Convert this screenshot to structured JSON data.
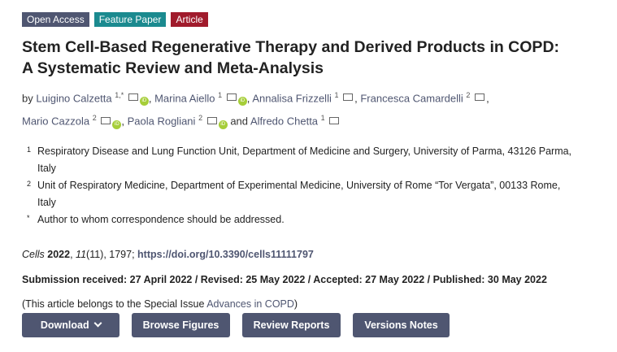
{
  "badges": [
    {
      "label": "Open Access",
      "color": "#4f5671"
    },
    {
      "label": "Feature Paper",
      "color": "#1b8a8f"
    },
    {
      "label": "Article",
      "color": "#a01b2c"
    }
  ],
  "title_line1": "Stem Cell-Based Regenerative Therapy and Derived Products in COPD:",
  "title_line2": "A Systematic Review and Meta-Analysis",
  "by": "by",
  "authors": [
    {
      "name": "Luigino Calzetta",
      "sup": "1,*"
    },
    {
      "name": "Marina Aiello",
      "sup": "1"
    },
    {
      "name": "Annalisa Frizzelli",
      "sup": "1"
    },
    {
      "name": "Francesca Camardelli",
      "sup": "2"
    },
    {
      "name": "Mario Cazzola",
      "sup": "2"
    },
    {
      "name": "Paola Rogliani",
      "sup": "2"
    },
    {
      "name": "Alfredo Chetta",
      "sup": "1"
    }
  ],
  "and": "and",
  "icons": {
    "mail": "envelope-icon",
    "orcid": "orcid-icon",
    "orcid_text": "iD"
  },
  "affiliations": [
    {
      "n": "1",
      "text": "Respiratory Disease and Lung Function Unit, Department of Medicine and Surgery, University of Parma, 43126 Parma, Italy"
    },
    {
      "n": "2",
      "text": "Unit of Respiratory Medicine, Department of Experimental Medicine, University of Rome “Tor Vergata”, 00133 Rome, Italy"
    },
    {
      "n": "*",
      "text": "Author to whom correspondence should be addressed."
    }
  ],
  "citation": {
    "journal": "Cells",
    "year": "2022",
    "volume": "11",
    "issue": "(11), 1797;",
    "doi": "https://doi.org/10.3390/cells11111797"
  },
  "dates": "Submission received: 27 April 2022 / Revised: 25 May 2022 / Accepted: 27 May 2022 / Published: 30 May 2022",
  "special_issue": {
    "prefix": "(This article belongs to the Special Issue ",
    "link": "Advances in COPD",
    "suffix": ")"
  },
  "buttons": {
    "download": "Download",
    "browse": "Browse Figures",
    "reviews": "Review Reports",
    "versions": "Versions Notes"
  }
}
